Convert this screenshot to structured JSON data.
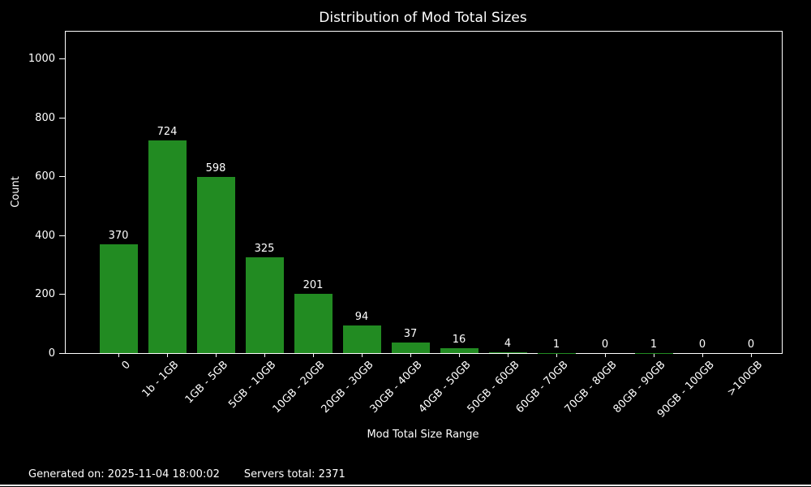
{
  "chart_data": {
    "type": "bar",
    "title": "Distribution of Mod Total Sizes",
    "xlabel": "Mod Total Size Range",
    "ylabel": "Count",
    "categories": [
      "0",
      "1b - 1GB",
      "1GB - 5GB",
      "5GB - 10GB",
      "10GB - 20GB",
      "20GB - 30GB",
      "30GB - 40GB",
      "40GB - 50GB",
      "50GB - 60GB",
      "60GB - 70GB",
      "70GB - 80GB",
      "80GB - 90GB",
      "90GB - 100GB",
      ">100GB"
    ],
    "values": [
      370,
      724,
      598,
      325,
      201,
      94,
      37,
      16,
      4,
      1,
      0,
      1,
      0,
      0
    ],
    "yticks": [
      0,
      200,
      400,
      600,
      800,
      1000
    ],
    "ylim": [
      0,
      1092
    ],
    "grid": false,
    "legend": null,
    "bar_color": "#228B22",
    "background_color": "#000000",
    "text_color": "#ffffff",
    "x_tick_rotation_deg": 45
  },
  "footer": {
    "generated": "Generated on: 2025-11-04 18:00:02",
    "servers_total": "Servers total: 2371"
  }
}
